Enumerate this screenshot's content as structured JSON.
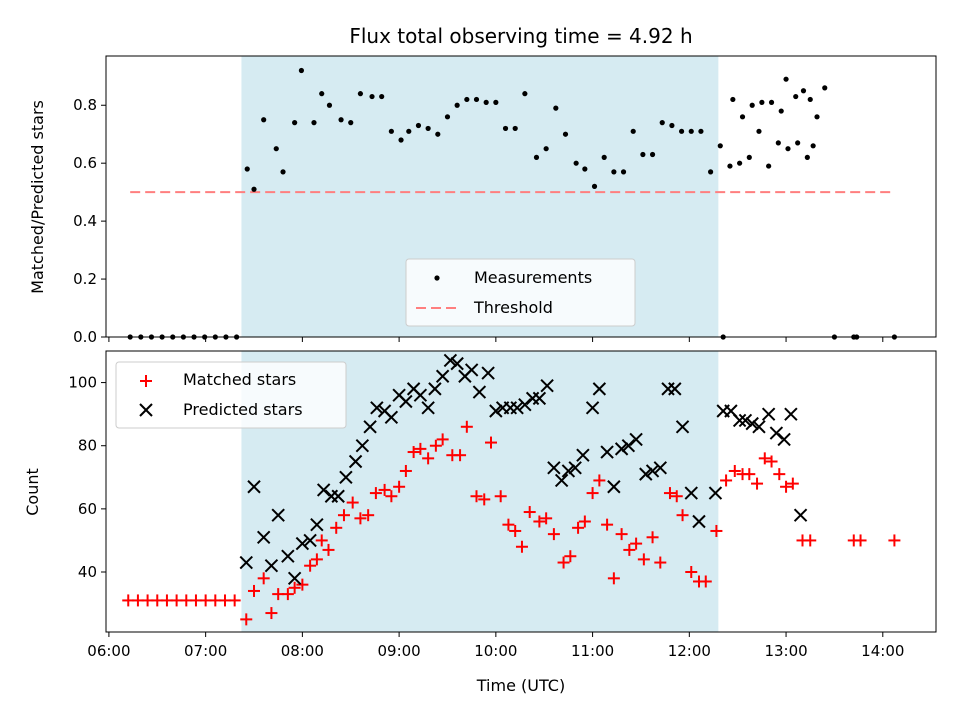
{
  "chart_data": [
    {
      "type": "scatter",
      "title": "Flux total observing time = 4.92 h",
      "ylabel": "Matched/Predicted stars",
      "xlim_hours": [
        5.97,
        14.55
      ],
      "ylim": [
        0,
        0.97
      ],
      "yticks": [
        "0.0",
        "0.2",
        "0.4",
        "0.6",
        "0.8"
      ],
      "shaded_region_hours": [
        7.37,
        12.3
      ],
      "threshold": {
        "name": "Threshold",
        "y": 0.5,
        "x_range_hours": [
          6.22,
          14.1
        ],
        "color": "#ff7f7f"
      },
      "legend": {
        "placement": "lower-center",
        "entries": [
          "Measurements",
          "Threshold"
        ]
      },
      "series": [
        {
          "name": "Measurements",
          "color": "#000000",
          "points": [
            [
              6.22,
              0
            ],
            [
              6.33,
              0
            ],
            [
              6.44,
              0
            ],
            [
              6.55,
              0
            ],
            [
              6.66,
              0
            ],
            [
              6.77,
              0
            ],
            [
              6.88,
              0
            ],
            [
              6.99,
              0
            ],
            [
              7.1,
              0
            ],
            [
              7.21,
              0
            ],
            [
              7.32,
              0
            ],
            [
              7.43,
              0.58
            ],
            [
              7.5,
              0.51
            ],
            [
              7.6,
              0.75
            ],
            [
              7.73,
              0.65
            ],
            [
              7.8,
              0.57
            ],
            [
              7.92,
              0.74
            ],
            [
              7.99,
              0.92
            ],
            [
              8.12,
              0.74
            ],
            [
              8.2,
              0.84
            ],
            [
              8.28,
              0.8
            ],
            [
              8.4,
              0.75
            ],
            [
              8.5,
              0.74
            ],
            [
              8.6,
              0.84
            ],
            [
              8.72,
              0.83
            ],
            [
              8.82,
              0.83
            ],
            [
              8.92,
              0.71
            ],
            [
              9.02,
              0.68
            ],
            [
              9.1,
              0.71
            ],
            [
              9.2,
              0.73
            ],
            [
              9.3,
              0.72
            ],
            [
              9.4,
              0.7
            ],
            [
              9.5,
              0.76
            ],
            [
              9.6,
              0.8
            ],
            [
              9.7,
              0.82
            ],
            [
              9.8,
              0.82
            ],
            [
              9.9,
              0.81
            ],
            [
              10.0,
              0.81
            ],
            [
              10.1,
              0.72
            ],
            [
              10.2,
              0.72
            ],
            [
              10.3,
              0.84
            ],
            [
              10.42,
              0.62
            ],
            [
              10.52,
              0.65
            ],
            [
              10.62,
              0.79
            ],
            [
              10.72,
              0.7
            ],
            [
              10.83,
              0.6
            ],
            [
              10.92,
              0.58
            ],
            [
              11.02,
              0.52
            ],
            [
              11.12,
              0.62
            ],
            [
              11.22,
              0.57
            ],
            [
              11.32,
              0.57
            ],
            [
              11.42,
              0.71
            ],
            [
              11.52,
              0.63
            ],
            [
              11.62,
              0.63
            ],
            [
              11.72,
              0.74
            ],
            [
              11.82,
              0.73
            ],
            [
              11.92,
              0.71
            ],
            [
              12.02,
              0.71
            ],
            [
              12.12,
              0.71
            ],
            [
              12.22,
              0.57
            ],
            [
              12.32,
              0.66
            ],
            [
              12.42,
              0.59
            ],
            [
              12.52,
              0.6
            ],
            [
              12.62,
              0.62
            ],
            [
              12.72,
              0.71
            ],
            [
              12.82,
              0.59
            ],
            [
              12.92,
              0.67
            ],
            [
              13.02,
              0.65
            ],
            [
              13.12,
              0.67
            ],
            [
              13.22,
              0.62
            ],
            [
              13.28,
              0.66
            ],
            [
              12.35,
              0
            ],
            [
              12.45,
              0.82
            ],
            [
              12.55,
              0.76
            ],
            [
              12.65,
              0.8
            ],
            [
              12.75,
              0.81
            ],
            [
              12.85,
              0.81
            ],
            [
              12.95,
              0.78
            ],
            [
              13.0,
              0.89
            ],
            [
              13.1,
              0.83
            ],
            [
              13.18,
              0.85
            ],
            [
              13.25,
              0.82
            ],
            [
              13.32,
              0.76
            ],
            [
              13.4,
              0.86
            ],
            [
              13.5,
              0
            ],
            [
              13.7,
              0
            ],
            [
              13.73,
              0
            ],
            [
              14.12,
              0
            ]
          ]
        }
      ]
    },
    {
      "type": "scatter",
      "xlabel": "Time (UTC)",
      "ylabel": "Count",
      "xlim_hours": [
        5.97,
        14.55
      ],
      "ylim": [
        21,
        110
      ],
      "xticks": [
        "06:00",
        "07:00",
        "08:00",
        "09:00",
        "10:00",
        "11:00",
        "12:00",
        "13:00",
        "14:00"
      ],
      "yticks": [
        "40",
        "60",
        "80",
        "100"
      ],
      "shaded_region_hours": [
        7.37,
        12.3
      ],
      "legend": {
        "placement": "top-left",
        "entries": [
          "Matched stars",
          "Predicted stars"
        ]
      },
      "series": [
        {
          "name": "Matched stars",
          "marker": "+",
          "color": "#ff0000",
          "points": [
            [
              6.2,
              31
            ],
            [
              6.3,
              31
            ],
            [
              6.4,
              31
            ],
            [
              6.5,
              31
            ],
            [
              6.6,
              31
            ],
            [
              6.7,
              31
            ],
            [
              6.8,
              31
            ],
            [
              6.9,
              31
            ],
            [
              7.0,
              31
            ],
            [
              7.1,
              31
            ],
            [
              7.2,
              31
            ],
            [
              7.3,
              31
            ],
            [
              7.42,
              25
            ],
            [
              7.5,
              34
            ],
            [
              7.6,
              38
            ],
            [
              7.68,
              27
            ],
            [
              7.75,
              33
            ],
            [
              7.85,
              33
            ],
            [
              7.92,
              35
            ],
            [
              8.0,
              36
            ],
            [
              8.08,
              42
            ],
            [
              8.15,
              44
            ],
            [
              8.2,
              50
            ],
            [
              8.27,
              47
            ],
            [
              8.35,
              54
            ],
            [
              8.43,
              58
            ],
            [
              8.52,
              62
            ],
            [
              8.6,
              57
            ],
            [
              8.68,
              58
            ],
            [
              8.76,
              65
            ],
            [
              8.85,
              66
            ],
            [
              8.92,
              64
            ],
            [
              9.0,
              67
            ],
            [
              9.07,
              72
            ],
            [
              9.15,
              78
            ],
            [
              9.22,
              79
            ],
            [
              9.3,
              76
            ],
            [
              9.38,
              80
            ],
            [
              9.45,
              82
            ],
            [
              9.55,
              77
            ],
            [
              9.63,
              77
            ],
            [
              9.7,
              86
            ],
            [
              9.8,
              64
            ],
            [
              9.88,
              63
            ],
            [
              9.95,
              81
            ],
            [
              10.05,
              64
            ],
            [
              10.13,
              55
            ],
            [
              10.2,
              53
            ],
            [
              10.27,
              48
            ],
            [
              10.35,
              59
            ],
            [
              10.45,
              56
            ],
            [
              10.52,
              57
            ],
            [
              10.6,
              52
            ],
            [
              10.7,
              43
            ],
            [
              10.77,
              45
            ],
            [
              10.85,
              54
            ],
            [
              10.92,
              56
            ],
            [
              11.0,
              65
            ],
            [
              11.07,
              69
            ],
            [
              11.15,
              55
            ],
            [
              11.22,
              38
            ],
            [
              11.3,
              52
            ],
            [
              11.38,
              47
            ],
            [
              11.45,
              49
            ],
            [
              11.53,
              44
            ],
            [
              11.62,
              51
            ],
            [
              11.7,
              43
            ],
            [
              11.8,
              65
            ],
            [
              11.87,
              64
            ],
            [
              11.93,
              58
            ],
            [
              12.02,
              40
            ],
            [
              12.1,
              37
            ],
            [
              12.17,
              37
            ],
            [
              12.28,
              53
            ],
            [
              12.38,
              69
            ],
            [
              12.47,
              72
            ],
            [
              12.55,
              71
            ],
            [
              12.62,
              71
            ],
            [
              12.7,
              68
            ],
            [
              12.78,
              76
            ],
            [
              12.85,
              75
            ],
            [
              12.93,
              71
            ],
            [
              13.0,
              67
            ],
            [
              13.07,
              68
            ],
            [
              13.17,
              50
            ],
            [
              13.25,
              50
            ],
            [
              13.7,
              50
            ],
            [
              13.77,
              50
            ],
            [
              14.12,
              50
            ]
          ]
        },
        {
          "name": "Predicted stars",
          "marker": "x",
          "color": "#000000",
          "points": [
            [
              7.42,
              43
            ],
            [
              7.5,
              67
            ],
            [
              7.6,
              51
            ],
            [
              7.68,
              42
            ],
            [
              7.75,
              58
            ],
            [
              7.85,
              45
            ],
            [
              7.92,
              38
            ],
            [
              8.0,
              49
            ],
            [
              8.08,
              50
            ],
            [
              8.15,
              55
            ],
            [
              8.22,
              66
            ],
            [
              8.3,
              64
            ],
            [
              8.37,
              64
            ],
            [
              8.45,
              70
            ],
            [
              8.55,
              75
            ],
            [
              8.62,
              80
            ],
            [
              8.7,
              86
            ],
            [
              8.77,
              92
            ],
            [
              8.85,
              91
            ],
            [
              8.92,
              89
            ],
            [
              9.0,
              96
            ],
            [
              9.07,
              94
            ],
            [
              9.15,
              98
            ],
            [
              9.22,
              96
            ],
            [
              9.3,
              92
            ],
            [
              9.37,
              98
            ],
            [
              9.45,
              102
            ],
            [
              9.53,
              107
            ],
            [
              9.6,
              106
            ],
            [
              9.68,
              102
            ],
            [
              9.75,
              104
            ],
            [
              9.83,
              97
            ],
            [
              9.92,
              103
            ],
            [
              10.0,
              91
            ],
            [
              10.07,
              92
            ],
            [
              10.15,
              92
            ],
            [
              10.22,
              92
            ],
            [
              10.3,
              93
            ],
            [
              10.38,
              95
            ],
            [
              10.45,
              95
            ],
            [
              10.53,
              99
            ],
            [
              10.6,
              73
            ],
            [
              10.68,
              69
            ],
            [
              10.75,
              72
            ],
            [
              10.82,
              73
            ],
            [
              10.9,
              77
            ],
            [
              11.0,
              92
            ],
            [
              11.07,
              98
            ],
            [
              11.15,
              78
            ],
            [
              11.22,
              67
            ],
            [
              11.3,
              79
            ],
            [
              11.37,
              80
            ],
            [
              11.45,
              82
            ],
            [
              11.55,
              71
            ],
            [
              11.62,
              72
            ],
            [
              11.7,
              73
            ],
            [
              11.78,
              98
            ],
            [
              11.85,
              98
            ],
            [
              11.93,
              86
            ],
            [
              12.02,
              65
            ],
            [
              12.1,
              56
            ],
            [
              12.27,
              65
            ],
            [
              12.35,
              91
            ],
            [
              12.43,
              91
            ],
            [
              12.52,
              88
            ],
            [
              12.58,
              88
            ],
            [
              12.65,
              87
            ],
            [
              12.72,
              86
            ],
            [
              12.82,
              90
            ],
            [
              12.9,
              84
            ],
            [
              12.98,
              82
            ],
            [
              13.05,
              90
            ],
            [
              13.15,
              58
            ]
          ]
        }
      ]
    }
  ]
}
